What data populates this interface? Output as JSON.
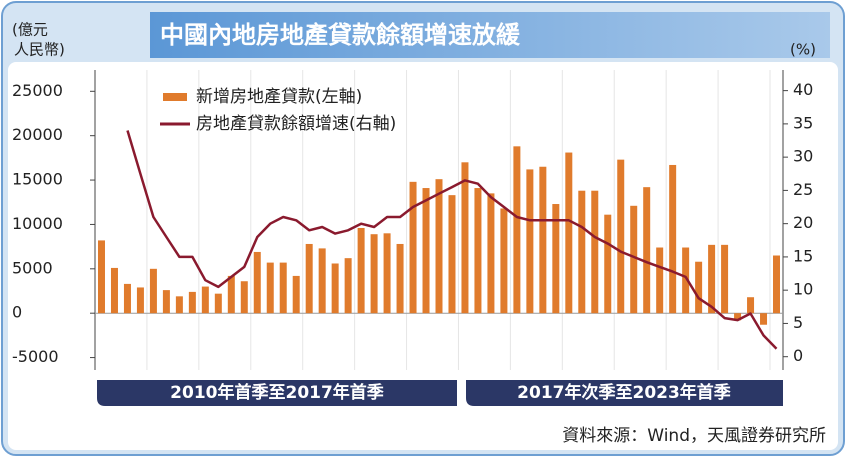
{
  "chart_data": {
    "type": "bar-line",
    "title": "中國內地房地產貸款餘額增速放緩",
    "y_label": [
      "(億元",
      "人民幣)"
    ],
    "y2_label": "(%)",
    "periods": [
      "2010年首季至2017年首季",
      "2017年次季至2023年首季"
    ],
    "source": "資料來源：Wind，天風證券研究所",
    "categories": [
      null,
      null,
      null,
      null,
      null,
      null,
      null,
      null,
      null,
      null,
      null,
      null,
      null,
      null,
      null,
      null,
      null,
      null,
      null,
      null,
      null,
      null,
      null,
      null,
      null,
      null,
      null,
      null,
      null,
      null,
      null,
      null,
      null,
      null,
      null,
      null,
      null,
      null,
      null,
      null,
      null,
      null,
      null,
      null,
      null,
      null,
      null,
      null,
      null,
      null,
      null,
      null,
      null
    ],
    "series": [
      {
        "name": "新增房地產貸款(左軸)",
        "color": "#e07b2c",
        "axis": "y",
        "values": [
          8200,
          5100,
          3300,
          2900,
          5000,
          2600,
          1900,
          2400,
          3000,
          2200,
          4200,
          3600,
          6900,
          5700,
          5700,
          4200,
          7800,
          7300,
          5600,
          6200,
          9600,
          8900,
          9000,
          7800,
          14800,
          14100,
          15100,
          13300,
          17000,
          14100,
          13500,
          11800,
          18800,
          16200,
          16500,
          12300,
          18100,
          13800,
          13800,
          11100,
          17300,
          12100,
          14200,
          7400,
          16700,
          7400,
          5800,
          7700,
          7700,
          -800,
          1800,
          -1300,
          6500
        ]
      },
      {
        "name": "房地產貸款餘額增速(右軸)",
        "color": "#8a1a2e",
        "axis": "y2",
        "values": [
          null,
          null,
          34,
          27.5,
          21,
          18,
          15,
          15,
          11.5,
          10.5,
          12,
          13.5,
          18,
          20,
          21,
          20.5,
          19,
          19.5,
          18.5,
          19,
          20,
          19.5,
          21,
          21,
          22.5,
          23.5,
          24.5,
          25.5,
          26.5,
          26,
          24,
          22.5,
          21,
          20.5,
          20.5,
          20.5,
          20.5,
          19.5,
          18,
          17,
          15.8,
          15,
          14.2,
          13.5,
          12.8,
          12,
          8.8,
          7.5,
          5.8,
          5.5,
          6.5,
          3.2,
          1.2
        ]
      }
    ],
    "ylim": [
      -6400,
      27400
    ],
    "yticks": [
      -5000,
      0,
      5000,
      10000,
      15000,
      20000,
      25000
    ],
    "y2lim": [
      -2,
      43.1
    ],
    "y2ticks": [
      0,
      5,
      10,
      15,
      20,
      25,
      30,
      35,
      40
    ],
    "grid": true
  }
}
